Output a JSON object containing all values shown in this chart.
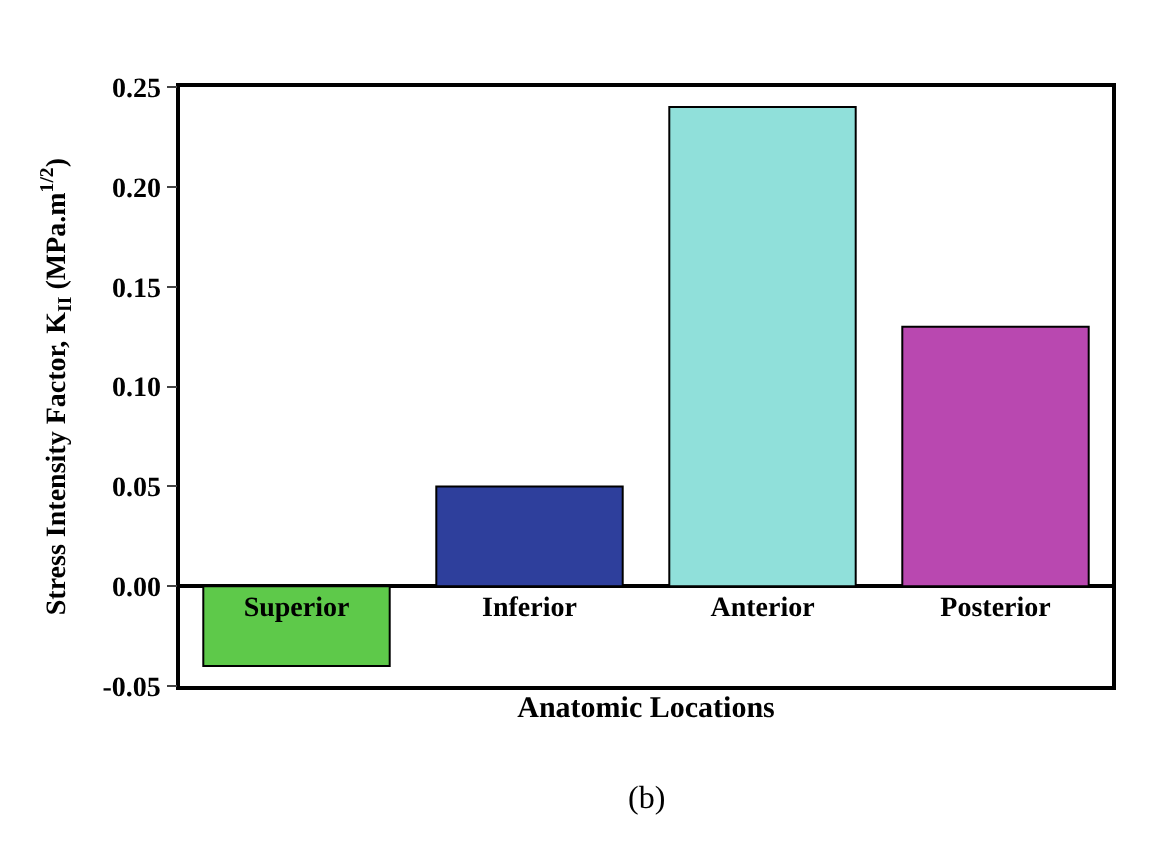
{
  "chart_data": {
    "type": "bar",
    "categories": [
      "Superior",
      "Inferior",
      "Anterior",
      "Posterior"
    ],
    "values": [
      -0.04,
      0.05,
      0.24,
      0.13
    ],
    "colors": [
      "#5ec94a",
      "#2e3f9c",
      "#90e0da",
      "#b948b0"
    ],
    "xlabel": "Anatomic Locations",
    "ylabel": "Stress Intensity Factor, K$_{II}$ (MPa.m$^{1/2}$)",
    "ylim": [
      -0.05,
      0.25
    ],
    "yticks": [
      {
        "value": -0.05,
        "label": "-0.05"
      },
      {
        "value": 0,
        "label": "0.00"
      },
      {
        "value": 0.05,
        "label": "0.05"
      },
      {
        "value": 0.1,
        "label": "0.10"
      },
      {
        "value": 0.15,
        "label": "0.15"
      },
      {
        "value": 0.2,
        "label": "0.20"
      },
      {
        "value": 0.25,
        "label": "0.25"
      }
    ],
    "annotations": [
      "(b)"
    ]
  }
}
